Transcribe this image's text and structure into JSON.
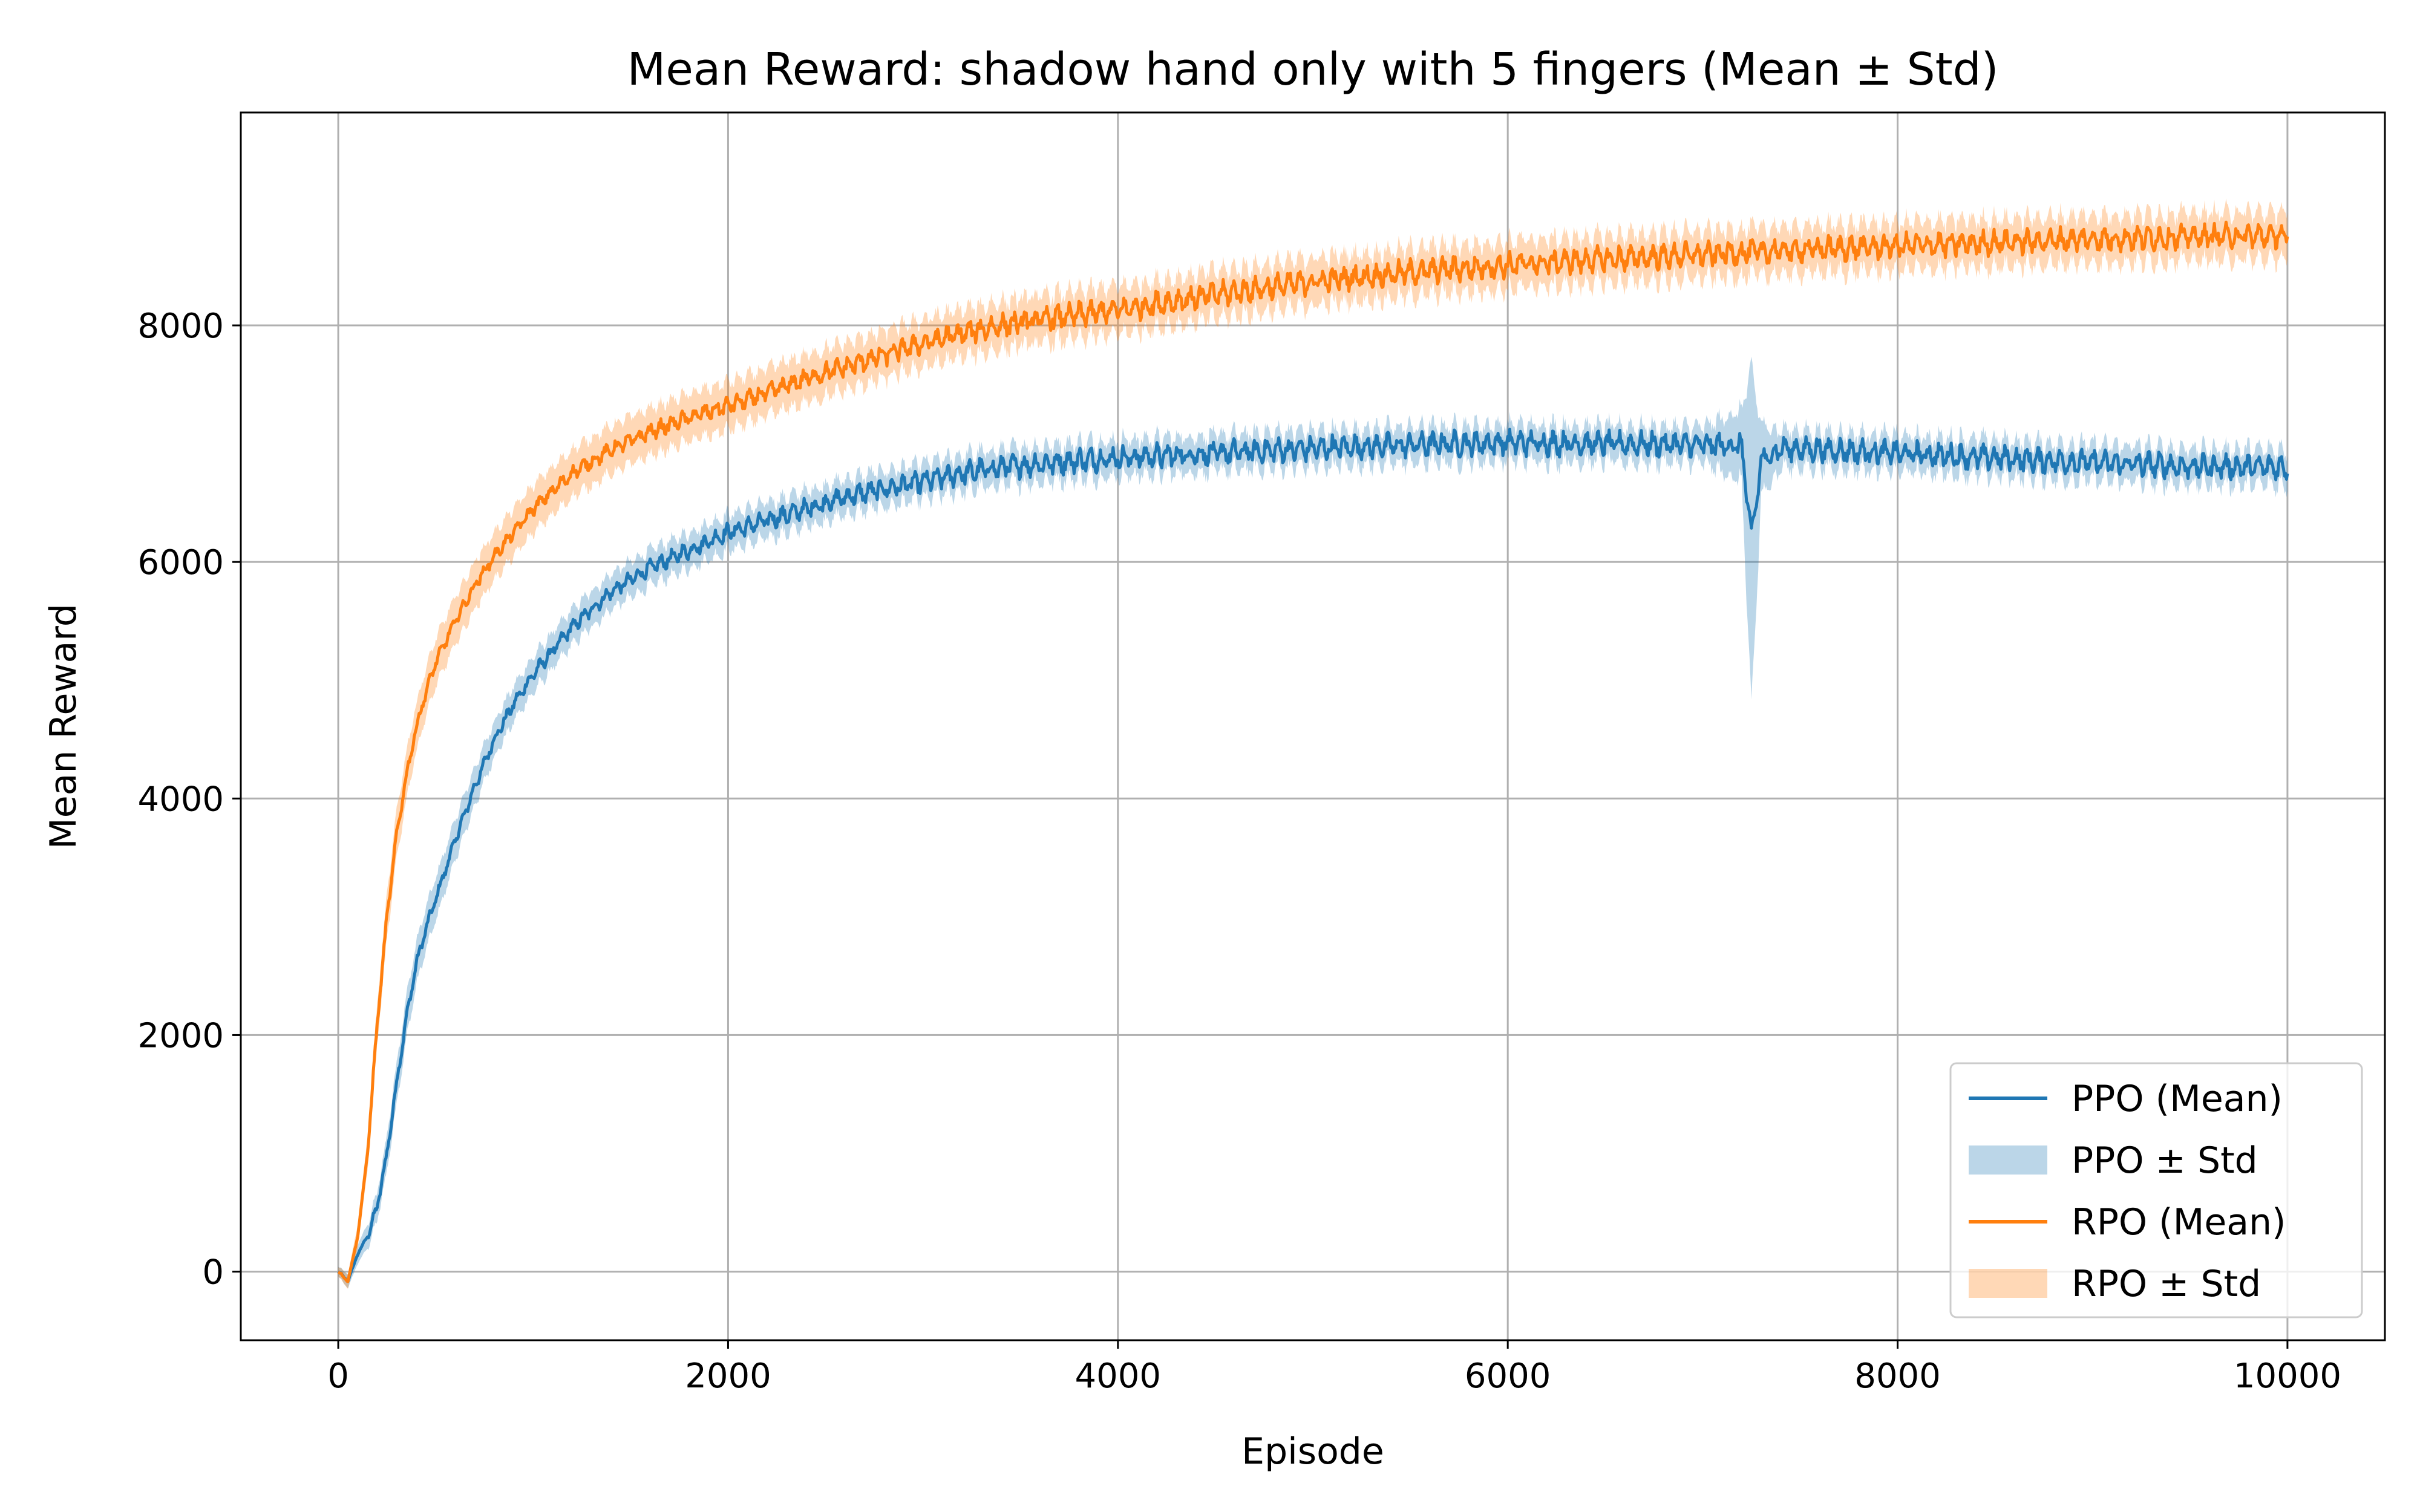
{
  "chart_data": {
    "type": "line",
    "title": "Mean Reward: shadow hand only with 5 fingers (Mean ± Std)",
    "xlabel": "Episode",
    "ylabel": "Mean Reward",
    "xlim": [
      -500,
      10500
    ],
    "ylim": [
      -580,
      9800
    ],
    "xticks": [
      0,
      2000,
      4000,
      6000,
      8000,
      10000
    ],
    "xtick_labels": [
      "0",
      "2000",
      "4000",
      "6000",
      "8000",
      "10000"
    ],
    "yticks": [
      0,
      2000,
      4000,
      6000,
      8000
    ],
    "ytick_labels": [
      "0",
      "2000",
      "4000",
      "6000",
      "8000"
    ],
    "grid": true,
    "legend_position": "lower-right",
    "legend": [
      {
        "label": "PPO (Mean)",
        "kind": "line",
        "series": "PPO"
      },
      {
        "label": "PPO ± Std",
        "kind": "band",
        "series": "PPO"
      },
      {
        "label": "RPO (Mean)",
        "kind": "line",
        "series": "RPO"
      },
      {
        "label": "RPO ± Std",
        "kind": "band",
        "series": "RPO"
      }
    ],
    "series": [
      {
        "name": "PPO",
        "color": "#1f77b4",
        "band_color": "#1f77b4",
        "x": [
          0,
          50,
          100,
          150,
          200,
          250,
          300,
          350,
          400,
          450,
          500,
          600,
          700,
          800,
          900,
          1000,
          1200,
          1400,
          1600,
          1800,
          2000,
          2200,
          2400,
          2600,
          2800,
          3000,
          3200,
          3400,
          3600,
          3800,
          4000,
          4500,
          5000,
          5500,
          6000,
          6500,
          7000,
          7200,
          7250,
          7300,
          7400,
          7600,
          8000,
          8500,
          9000,
          9500,
          10000
        ],
        "mean": [
          0,
          -80,
          150,
          300,
          550,
          1000,
          1600,
          2150,
          2600,
          2900,
          3150,
          3650,
          4100,
          4500,
          4800,
          5050,
          5450,
          5750,
          5950,
          6100,
          6250,
          6350,
          6450,
          6550,
          6620,
          6680,
          6750,
          6800,
          6830,
          6860,
          6880,
          6920,
          6960,
          6990,
          7010,
          7000,
          6990,
          6980,
          6200,
          6850,
          6960,
          6950,
          6920,
          6880,
          6840,
          6810,
          6800
        ],
        "std": [
          40,
          60,
          80,
          100,
          120,
          150,
          170,
          180,
          180,
          180,
          180,
          170,
          160,
          150,
          150,
          150,
          150,
          150,
          150,
          150,
          150,
          150,
          150,
          150,
          150,
          150,
          150,
          150,
          150,
          150,
          150,
          150,
          150,
          150,
          150,
          150,
          150,
          300,
          1450,
          300,
          160,
          150,
          150,
          150,
          150,
          150,
          150
        ]
      },
      {
        "name": "RPO",
        "color": "#ff7f0e",
        "band_color": "#ff7f0e",
        "x": [
          0,
          50,
          100,
          150,
          200,
          250,
          300,
          350,
          400,
          450,
          500,
          600,
          700,
          800,
          900,
          1000,
          1200,
          1400,
          1600,
          1800,
          2000,
          2200,
          2400,
          2600,
          2800,
          3000,
          3200,
          3400,
          3600,
          3800,
          4000,
          4500,
          5000,
          5500,
          6000,
          6500,
          7000,
          7500,
          8000,
          8500,
          9000,
          9500,
          10000
        ],
        "mean": [
          0,
          -80,
          300,
          1000,
          2100,
          3000,
          3700,
          4200,
          4600,
          4900,
          5150,
          5500,
          5800,
          6050,
          6250,
          6450,
          6750,
          6950,
          7100,
          7220,
          7320,
          7430,
          7550,
          7650,
          7750,
          7850,
          7930,
          8000,
          8050,
          8090,
          8130,
          8260,
          8370,
          8450,
          8510,
          8560,
          8600,
          8640,
          8670,
          8700,
          8730,
          8750,
          8760
        ],
        "std": [
          40,
          60,
          100,
          140,
          170,
          190,
          200,
          200,
          200,
          200,
          200,
          200,
          200,
          200,
          200,
          200,
          200,
          200,
          200,
          200,
          200,
          200,
          200,
          200,
          200,
          200,
          200,
          200,
          200,
          200,
          200,
          200,
          200,
          200,
          200,
          200,
          200,
          200,
          200,
          200,
          200,
          200,
          200
        ]
      }
    ]
  }
}
